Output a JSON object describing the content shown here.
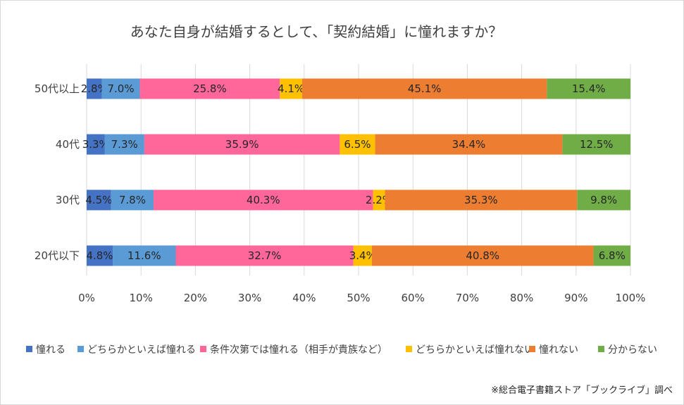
{
  "chart_data": {
    "type": "bar",
    "orientation": "horizontal",
    "stacked": "percent",
    "title": "あなた自身が結婚するとして、「契約結婚」に憧れますか？",
    "categories": [
      "50代以上",
      "40代",
      "30代",
      "20代以下"
    ],
    "series": [
      {
        "name": "憧れる",
        "color": "#4472C4",
        "values": [
          2.8,
          3.3,
          4.5,
          4.8
        ],
        "labels": [
          "2.8%",
          "3.3%",
          "4.5%",
          "4.8%"
        ]
      },
      {
        "name": "どちらかといえば憧れる",
        "color": "#5B9BD5",
        "values": [
          7.0,
          7.3,
          7.8,
          11.6
        ],
        "labels": [
          "7.0%",
          "7.3%",
          "7.8%",
          "11.6%"
        ]
      },
      {
        "name": "条件次第では憧れる（相手が貴族など）",
        "color": "#FF6699",
        "values": [
          25.8,
          35.9,
          40.3,
          32.7
        ],
        "labels": [
          "25.8%",
          "35.9%",
          "40.3%",
          "32.7%"
        ]
      },
      {
        "name": "どちらかといえば憧れない",
        "color": "#FFC000",
        "values": [
          4.1,
          6.5,
          2.2,
          3.4
        ],
        "labels": [
          "4.1%",
          "6.5%",
          "2.2%",
          "3.4%"
        ]
      },
      {
        "name": "憧れない",
        "color": "#ED7D31",
        "values": [
          45.1,
          34.4,
          35.3,
          40.8
        ],
        "labels": [
          "45.1%",
          "34.4%",
          "35.3%",
          "40.8%"
        ]
      },
      {
        "name": "分からない",
        "color": "#70AD47",
        "values": [
          15.4,
          12.5,
          9.8,
          6.8
        ],
        "labels": [
          "15.4%",
          "12.5%",
          "9.8%",
          "6.8%"
        ]
      }
    ],
    "xlim": [
      0,
      100
    ],
    "xticks": [
      "0%",
      "10%",
      "20%",
      "30%",
      "40%",
      "50%",
      "60%",
      "70%",
      "80%",
      "90%",
      "100%"
    ],
    "grid": true,
    "legend_position": "bottom",
    "source_note": "※総合電子書籍ストア「ブックライブ」調べ"
  }
}
